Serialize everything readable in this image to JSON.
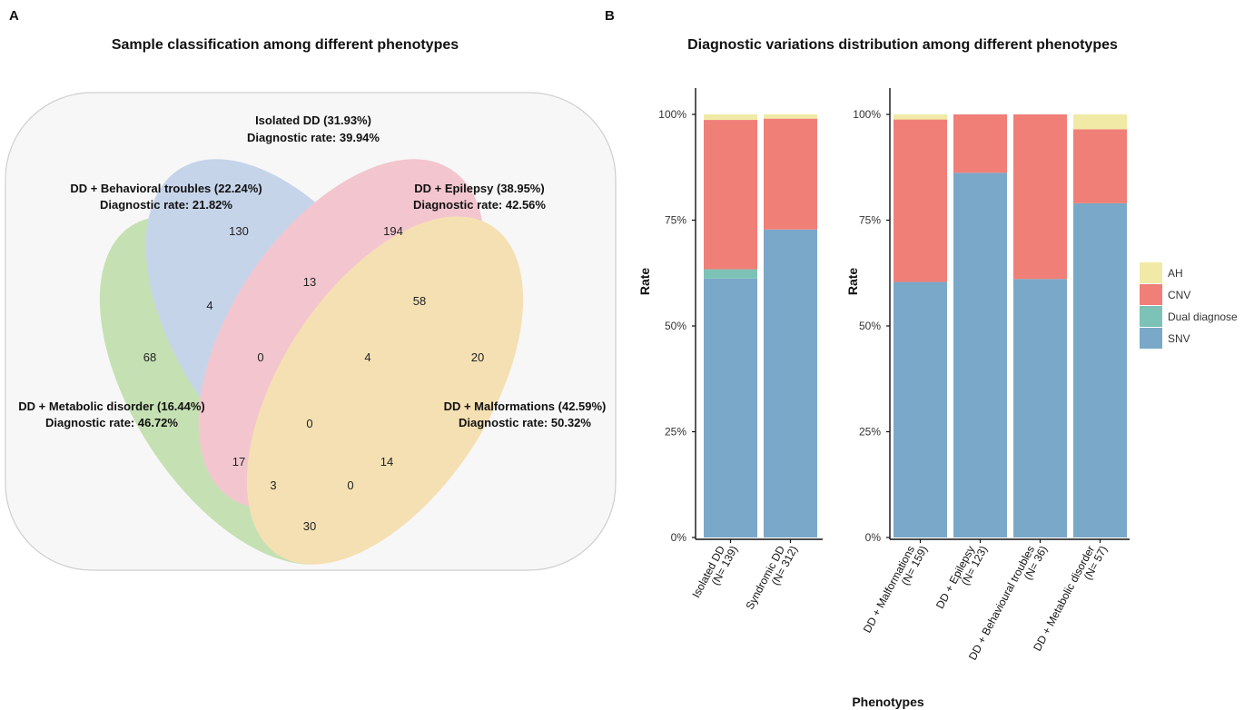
{
  "panel_a": {
    "letter": "A",
    "title": "Sample classification among different phenotypes",
    "colors": {
      "background": "#f7f7f7",
      "isolated_dd": "#f7f7f7",
      "behavioral": "#a9bfe3",
      "epilepsy": "#f2a9b8",
      "metabolic": "#a7d48b",
      "malformations": "#f4d28a"
    },
    "labels": {
      "isolated_line1": "Isolated DD (31.93%)",
      "isolated_line2": "Diagnostic rate: 39.94%",
      "behavioral_line1": "DD + Behavioral troubles (22.24%)",
      "behavioral_line2": "Diagnostic rate: 21.82%",
      "epilepsy_line1": "DD + Epilepsy (38.95%)",
      "epilepsy_line2": "Diagnostic rate: 42.56%",
      "metabolic_line1": "DD + Metabolic disorder (16.44%)",
      "metabolic_line2": "Diagnostic rate: 46.72%",
      "malformations_line1": "DD + Malformations (42.59%)",
      "malformations_line2": "Diagnostic rate: 50.32%"
    },
    "counts": {
      "behavioral_only": "130",
      "epilepsy_only": "194",
      "behavioral_epilepsy": "13",
      "metabolic_behavioral": "4",
      "epilepsy_malformations": "58",
      "metabolic_only": "68",
      "metabolic_behavioral_epilepsy": "0",
      "behavioral_epilepsy_malformations": "4",
      "malformations_only": "20",
      "all_four": "0",
      "metabolic_epilepsy": "17",
      "behavioral_malformations": "14",
      "metabolic_epilepsy_malformations": "3",
      "metabolic_behavioral_malformations": "0",
      "metabolic_malformations": "30"
    }
  },
  "panel_b": {
    "letter": "B",
    "title": "Diagnostic variations distribution among different phenotypes"
  },
  "chart_data": {
    "type": "bar",
    "stacked": true,
    "title": "Diagnostic variations distribution among different phenotypes",
    "xlabel": "Phenotypes",
    "ylabel": "Rate",
    "ylim": [
      0,
      1
    ],
    "yticks": [
      "0%",
      "25%",
      "50%",
      "75%",
      "100%"
    ],
    "stack_order": [
      "SNV",
      "Dual diagnose",
      "CNV",
      "AH"
    ],
    "colors": {
      "AH": "#f0eaa6",
      "CNV": "#f07f78",
      "Dual diagnose": "#7cc2b6",
      "SNV": "#7aa8c8"
    },
    "legend": {
      "position": "right",
      "entries": [
        "AH",
        "CNV",
        "Dual diagnose",
        "SNV"
      ]
    },
    "facets": [
      {
        "categories": [
          {
            "line1": "Isolated DD",
            "line2": "(N= 139)"
          },
          {
            "line1": "Syndromic DD",
            "line2": "(N= 312)"
          }
        ],
        "series": [
          {
            "name": "SNV",
            "values": [
              0.612,
              0.728
            ]
          },
          {
            "name": "Dual diagnose",
            "values": [
              0.022,
              0.0
            ]
          },
          {
            "name": "CNV",
            "values": [
              0.353,
              0.262
            ]
          },
          {
            "name": "AH",
            "values": [
              0.013,
              0.01
            ]
          }
        ]
      },
      {
        "categories": [
          {
            "line1": "DD + Malformations",
            "line2": "(N= 159)"
          },
          {
            "line1": "DD + Epilepsy",
            "line2": "(N= 123)"
          },
          {
            "line1": "DD + Behavioural troubles",
            "line2": "(N= 36)"
          },
          {
            "line1": "DD + Metabolic disorder",
            "line2": "(N= 57)"
          }
        ],
        "series": [
          {
            "name": "SNV",
            "values": [
              0.604,
              0.862,
              0.611,
              0.79
            ]
          },
          {
            "name": "Dual diagnose",
            "values": [
              0.0,
              0.0,
              0.0,
              0.0
            ]
          },
          {
            "name": "CNV",
            "values": [
              0.384,
              0.138,
              0.389,
              0.175
            ]
          },
          {
            "name": "AH",
            "values": [
              0.012,
              0.0,
              0.0,
              0.035
            ]
          }
        ]
      }
    ]
  }
}
